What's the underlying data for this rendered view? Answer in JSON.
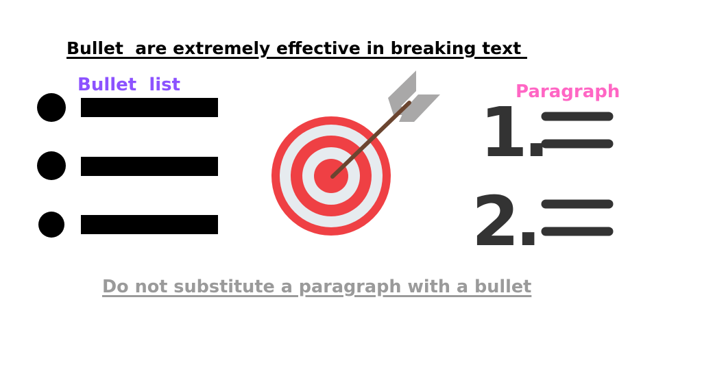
{
  "title": "Bullet  are extremely effective in breaking text ",
  "bullet_list": {
    "label": "Bullet  list",
    "label_color": "#8c52ff",
    "item_count": 3
  },
  "target_icon": {
    "name": "target-with-arrow-icon",
    "colors": {
      "red": "#ef4044",
      "light": "#e6ebef",
      "shaft": "#6b4530",
      "fletching": "#a9a8a8"
    }
  },
  "numbered_list": {
    "label": "Paragraph",
    "label_color": "#ff66c4",
    "numbers": [
      "1.",
      "2."
    ],
    "color": "#333333"
  },
  "footer": {
    "text": "Do not substitute a paragraph with a bullet",
    "color": "#9a9a9a"
  }
}
